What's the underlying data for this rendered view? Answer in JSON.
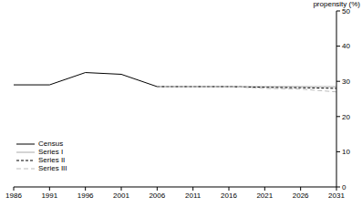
{
  "chart_data": {
    "type": "line",
    "y_label": "propensity (%)",
    "x": [
      1986,
      1991,
      1996,
      2001,
      2006,
      2011,
      2016,
      2021,
      2026,
      2031
    ],
    "xlim": [
      1986,
      2031
    ],
    "xticks": [
      1986,
      1991,
      1996,
      2001,
      2006,
      2011,
      2016,
      2021,
      2026,
      2031
    ],
    "ylim": [
      0,
      50
    ],
    "yticks": [
      0,
      10,
      20,
      30,
      40,
      50
    ],
    "legend": "lower left",
    "series": [
      {
        "name": "Census",
        "color": "#000000",
        "line_style": "solid",
        "values": [
          29,
          29,
          32.5,
          32,
          28.5,
          null,
          null,
          null,
          null,
          null
        ]
      },
      {
        "name": "Series I",
        "color": "#aaaaaa",
        "line_style": "solid",
        "values": [
          null,
          null,
          null,
          null,
          28.5,
          28.5,
          28.5,
          28.5,
          28.5,
          28.5
        ]
      },
      {
        "name": "Series II",
        "color": "#000000",
        "line_style": "dashed",
        "values": [
          null,
          null,
          null,
          null,
          28.5,
          28.5,
          28.5,
          28.3,
          28.2,
          28
        ]
      },
      {
        "name": "Series III",
        "color": "#bbbbbb",
        "line_style": "dashed",
        "values": [
          null,
          null,
          null,
          null,
          28.5,
          28.5,
          28.5,
          28,
          27.8,
          27
        ]
      }
    ]
  }
}
